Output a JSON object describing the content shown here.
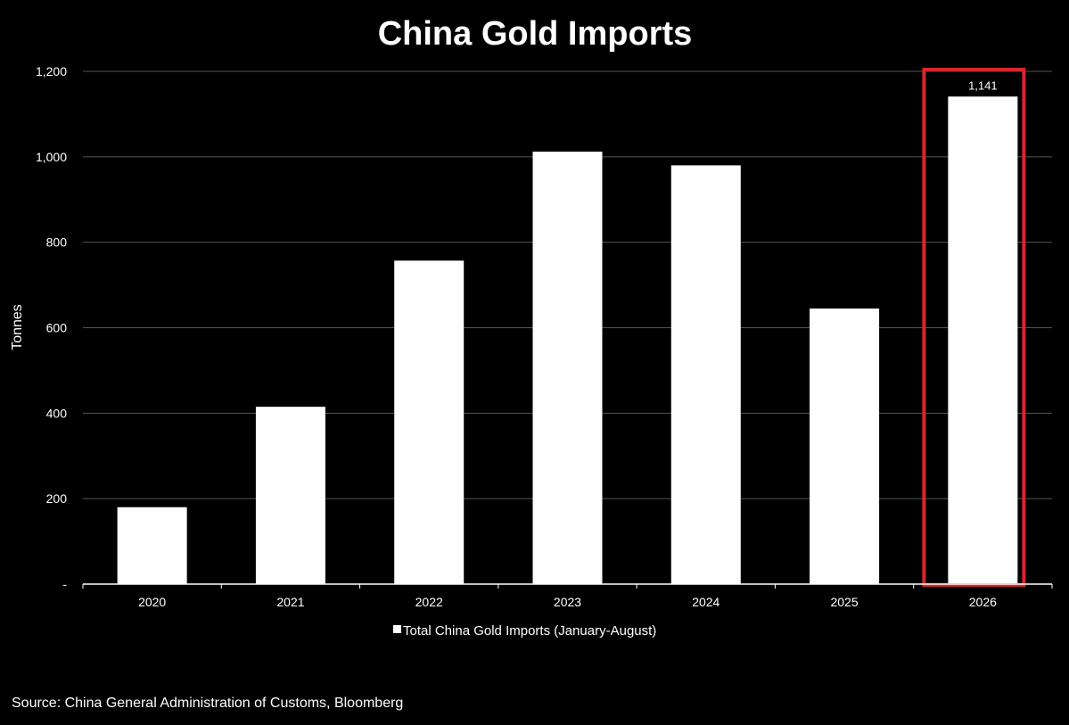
{
  "colors": {
    "background": "#000000",
    "bar": "#ffffff",
    "gridline": "#555555",
    "axis": "#ffffff",
    "text": "#ffffff",
    "highlight": "#d7262d"
  },
  "chart_data": {
    "type": "bar",
    "title": "China Gold Imports",
    "ylabel": "Tonnes",
    "xlabel": "",
    "categories": [
      "2020",
      "2021",
      "2022",
      "2023",
      "2024",
      "2025",
      "2026"
    ],
    "series": [
      {
        "name": "Total China Gold Imports (January-August)",
        "values": [
          180,
          415,
          757,
          1012,
          980,
          645,
          1141
        ]
      }
    ],
    "ylim": [
      0,
      1200
    ],
    "yticks": [
      0,
      200,
      400,
      600,
      800,
      1000,
      1200
    ],
    "ytick_labels": [
      "-",
      "200",
      "400",
      "600",
      "800",
      "1,000",
      "1,200"
    ],
    "data_labels": [
      {
        "category": "2026",
        "text": "1,141"
      }
    ],
    "highlight_category": "2026",
    "grid": true,
    "legend_position": "bottom"
  },
  "footer": {
    "source": "Source: China General Administration of Customs, Bloomberg"
  }
}
